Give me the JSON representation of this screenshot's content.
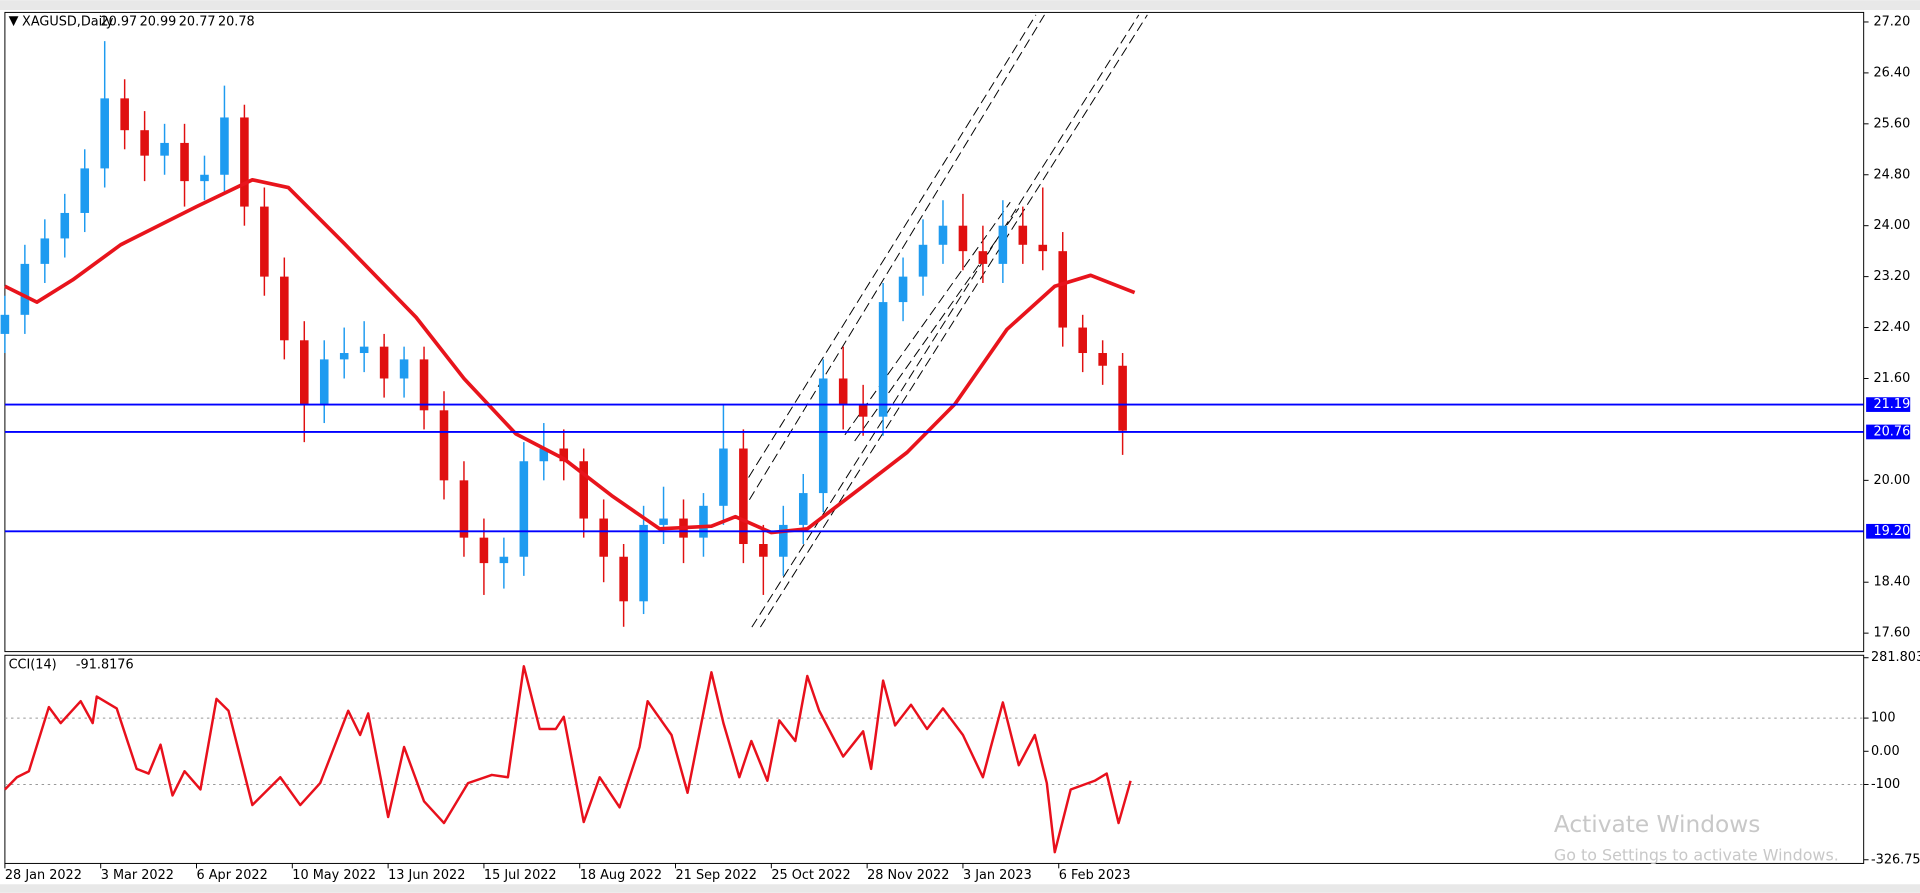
{
  "chart_data": [
    {
      "type": "candlestick",
      "title": "XAGUSD,Daily",
      "ohlc": [
        20.97,
        20.99,
        20.77,
        20.78
      ],
      "up_color": "#1e9bf0",
      "down_color": "#e01010",
      "x": [
        0,
        5,
        10,
        15,
        20,
        25,
        30,
        35,
        40,
        45,
        50,
        55,
        60,
        65,
        70,
        75,
        80,
        85,
        90,
        95,
        100,
        105,
        110,
        115,
        120,
        125,
        130,
        135,
        140,
        145,
        150,
        155,
        160,
        165,
        170,
        175,
        180,
        185,
        190,
        195,
        200,
        205,
        210,
        215,
        220,
        225,
        230,
        235,
        240,
        245,
        250,
        255,
        260,
        265,
        270,
        275,
        280
      ],
      "open": [
        22.3,
        22.6,
        23.4,
        23.8,
        24.2,
        24.9,
        26.0,
        25.5,
        25.1,
        25.3,
        24.7,
        24.8,
        25.7,
        24.3,
        23.2,
        22.2,
        21.2,
        21.9,
        22.0,
        22.1,
        21.6,
        21.9,
        21.1,
        20.0,
        19.1,
        18.7,
        18.8,
        20.3,
        20.5,
        20.3,
        19.4,
        18.8,
        18.1,
        19.3,
        19.4,
        19.1,
        19.6,
        20.5,
        19.0,
        18.8,
        19.3,
        19.8,
        21.6,
        21.2,
        21.0,
        22.8,
        23.2,
        23.7,
        24.0,
        23.6,
        23.4,
        24.0,
        23.7,
        23.6,
        22.4,
        22.0,
        21.8
      ],
      "high": [
        22.9,
        23.7,
        24.1,
        24.5,
        25.2,
        26.9,
        26.3,
        25.8,
        25.6,
        25.6,
        25.1,
        26.2,
        25.9,
        24.6,
        23.5,
        22.5,
        22.2,
        22.4,
        22.5,
        22.3,
        22.1,
        22.1,
        21.4,
        20.3,
        19.4,
        19.1,
        20.6,
        20.9,
        20.8,
        20.5,
        19.7,
        19.0,
        19.6,
        19.9,
        19.7,
        19.8,
        21.2,
        20.8,
        19.3,
        19.6,
        20.1,
        21.9,
        22.1,
        21.5,
        23.1,
        23.5,
        24.1,
        24.4,
        24.5,
        24.0,
        24.4,
        24.3,
        24.6,
        23.9,
        22.6,
        22.2,
        22.0
      ],
      "low": [
        22.0,
        22.3,
        23.1,
        23.5,
        23.9,
        24.6,
        25.2,
        24.7,
        24.8,
        24.3,
        24.4,
        24.5,
        24.0,
        22.9,
        21.9,
        20.6,
        20.9,
        21.6,
        21.7,
        21.3,
        21.3,
        20.8,
        19.7,
        18.8,
        18.2,
        18.3,
        18.5,
        20.0,
        20.0,
        19.1,
        18.4,
        17.7,
        17.9,
        19.0,
        18.7,
        18.8,
        19.3,
        18.7,
        18.2,
        18.5,
        19.0,
        19.5,
        20.8,
        20.7,
        20.7,
        22.5,
        22.9,
        23.4,
        23.3,
        23.1,
        23.1,
        23.4,
        23.3,
        22.1,
        21.7,
        21.5,
        20.4
      ],
      "close": [
        22.6,
        23.4,
        23.8,
        24.2,
        24.9,
        26.0,
        25.5,
        25.1,
        25.3,
        24.7,
        24.8,
        25.7,
        24.3,
        23.2,
        22.2,
        21.2,
        21.9,
        22.0,
        22.1,
        21.6,
        21.9,
        21.1,
        20.0,
        19.1,
        18.7,
        18.8,
        20.3,
        20.5,
        20.3,
        19.4,
        18.8,
        18.1,
        19.3,
        19.4,
        19.1,
        19.6,
        20.5,
        19.0,
        18.8,
        19.3,
        19.8,
        21.6,
        21.2,
        21.0,
        22.8,
        23.2,
        23.7,
        24.0,
        23.6,
        23.4,
        24.0,
        23.7,
        23.6,
        22.4,
        22.0,
        21.8,
        20.78
      ],
      "ma": {
        "color": "#e8141c",
        "x": [
          0,
          8,
          17,
          29,
          48,
          62,
          71,
          85,
          103,
          115,
          128,
          140,
          152,
          164,
          177,
          183,
          192,
          201,
          214,
          226,
          238,
          251,
          263,
          272,
          283
        ],
        "values": [
          23.05,
          22.8,
          23.15,
          23.7,
          24.3,
          24.72,
          24.6,
          23.72,
          22.56,
          21.6,
          20.73,
          20.34,
          19.76,
          19.24,
          19.28,
          19.43,
          19.18,
          19.24,
          19.86,
          20.44,
          21.2,
          22.37,
          23.05,
          23.22,
          22.95
        ]
      },
      "levels": {
        "color": "#0000ff",
        "values": [
          21.19,
          20.76,
          {
            "value": 19.2,
            "label": "19.20"
          }
        ]
      },
      "xlim": [
        -1,
        465
      ],
      "ylim": [
        17.31,
        27.35
      ],
      "yticks": [
        {
          "value": 27.2,
          "label": "27.20"
        },
        {
          "value": 26.4,
          "label": "26.40"
        },
        {
          "value": 25.6,
          "label": "25.60"
        },
        {
          "value": 24.8,
          "label": "24.80"
        },
        {
          "value": 24,
          "label": "24.00"
        },
        {
          "value": 23.2,
          "label": "23.20"
        },
        {
          "value": 22.4,
          "label": "22.40"
        },
        {
          "value": 21.6,
          "label": "21.60"
        },
        {
          "value": 20,
          "label": "20.00"
        },
        {
          "value": 18.4,
          "label": "18.40"
        },
        {
          "value": 17.6,
          "label": "17.60"
        }
      ]
    },
    {
      "type": "line",
      "title": "CCI(14)",
      "last_value": -91.8176,
      "series": [
        {
          "color": "#e8101c",
          "x": [
            0,
            3,
            6,
            11,
            14,
            19,
            22,
            23,
            28,
            33,
            36,
            39,
            42,
            45,
            49,
            53,
            56,
            62,
            69,
            74,
            79,
            86,
            89,
            91,
            96,
            100,
            105,
            110,
            116,
            122,
            126,
            130,
            134,
            138,
            140,
            145,
            149,
            154,
            159,
            161,
            167,
            171,
            177,
            180,
            184,
            187,
            191,
            194,
            198,
            201,
            204,
            210,
            215,
            217,
            220,
            223,
            227,
            231,
            235,
            240,
            245,
            247,
            250,
            254,
            258,
            261,
            263,
            267,
            273,
            276,
            279,
            282
          ],
          "values": [
            -115,
            -78,
            -60,
            133,
            85,
            151,
            85,
            165,
            129,
            -53,
            -67,
            20,
            -133,
            -60,
            -115,
            158,
            122,
            -162,
            -78,
            -162,
            -96,
            122,
            49,
            114,
            -198,
            13,
            -151,
            -216,
            -96,
            -71,
            -78,
            256,
            67,
            67,
            104,
            -213,
            -78,
            -169,
            13,
            151,
            49,
            -125,
            238,
            85,
            -78,
            31,
            -89,
            93,
            31,
            227,
            122,
            -16,
            60,
            -53,
            213,
            78,
            140,
            67,
            129,
            49,
            -78,
            13,
            147,
            -42,
            49,
            -96,
            -304,
            -115,
            -89,
            -67,
            -216,
            -89
          ]
        }
      ],
      "xlim": [
        -1,
        465
      ],
      "ylim": [
        -326.754,
        281.803
      ],
      "yticks": [
        281.803,
        100,
        {
          "value": 0,
          "label": "0.00"
        },
        -100,
        -326.754
      ],
      "xticks": [
        {
          "value": 0,
          "label": "28 Jan 2022"
        },
        {
          "value": 24,
          "label": "3 Mar 2022"
        },
        {
          "value": 48,
          "label": "6 Apr 2022"
        },
        {
          "value": 72,
          "label": "10 May 2022"
        },
        {
          "value": 96,
          "label": "13 Jun 2022"
        },
        {
          "value": 120,
          "label": "15 Jul 2022"
        },
        {
          "value": 144,
          "label": "18 Aug 2022"
        },
        {
          "value": 168,
          "label": "21 Sep 2022"
        },
        {
          "value": 192,
          "label": "25 Oct 2022"
        },
        {
          "value": 216,
          "label": "28 Nov 2022"
        },
        {
          "value": 240,
          "label": "3 Jan 2023"
        },
        {
          "value": 264,
          "label": "6 Feb 2023"
        }
      ]
    }
  ],
  "watermark": {
    "title": "Activate Windows",
    "subtitle": "Go to Settings to activate Windows."
  }
}
